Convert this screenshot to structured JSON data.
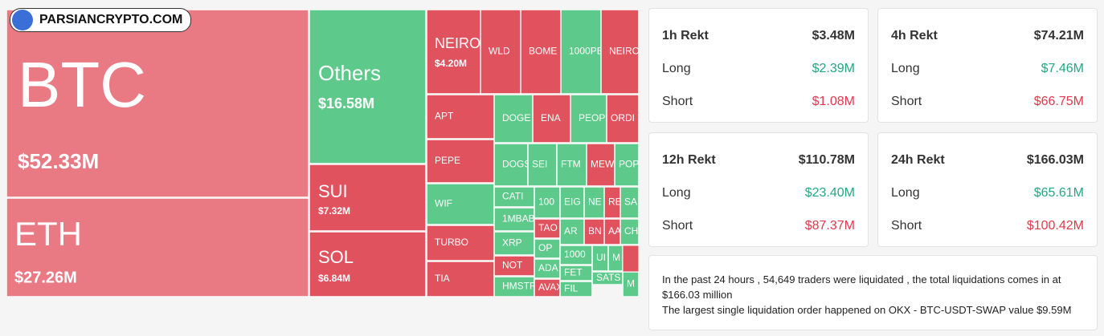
{
  "logo": "PARSIANCRYPTO.COM",
  "treemap": {
    "tiles": [
      {
        "label": "BTC",
        "value": "$52.33M"
      },
      {
        "label": "ETH",
        "value": "$27.26M"
      },
      {
        "label": "Others",
        "value": "$16.58M"
      },
      {
        "label": "SUI",
        "value": "$7.32M"
      },
      {
        "label": "SOL",
        "value": "$6.84M"
      },
      {
        "label": "NEIRO",
        "value": "$4.20M"
      },
      {
        "label": "WLD"
      },
      {
        "label": "BOME"
      },
      {
        "label": "1000PE"
      },
      {
        "label": "NEIRO"
      },
      {
        "label": "APT"
      },
      {
        "label": "PEPE"
      },
      {
        "label": "WIF"
      },
      {
        "label": "TURBO"
      },
      {
        "label": "TIA"
      },
      {
        "label": "DOGE"
      },
      {
        "label": "ENA"
      },
      {
        "label": "PEOPL"
      },
      {
        "label": "ORDI"
      },
      {
        "label": "DOGS"
      },
      {
        "label": "SEI"
      },
      {
        "label": "FTM"
      },
      {
        "label": "MEW"
      },
      {
        "label": "POP"
      },
      {
        "label": "CATI"
      },
      {
        "label": "1MBAB"
      },
      {
        "label": "XRP"
      },
      {
        "label": "NOT"
      },
      {
        "label": "HMSTR"
      },
      {
        "label": "100"
      },
      {
        "label": "EIG"
      },
      {
        "label": "NE"
      },
      {
        "label": "RE"
      },
      {
        "label": "SA"
      },
      {
        "label": "TAO"
      },
      {
        "label": "AR"
      },
      {
        "label": "BN"
      },
      {
        "label": "AA"
      },
      {
        "label": "CH"
      },
      {
        "label": "OP"
      },
      {
        "label": "ADA"
      },
      {
        "label": "AVAX"
      },
      {
        "label": "1000"
      },
      {
        "label": "FET"
      },
      {
        "label": "FIL"
      },
      {
        "label": "UI"
      },
      {
        "label": "M"
      },
      {
        "label": "SATS"
      },
      {
        "label": "M"
      }
    ]
  },
  "cards": [
    {
      "title": "1h Rekt",
      "total": "$3.48M",
      "long_label": "Long",
      "long": "$2.39M",
      "short_label": "Short",
      "short": "$1.08M"
    },
    {
      "title": "4h Rekt",
      "total": "$74.21M",
      "long_label": "Long",
      "long": "$7.46M",
      "short_label": "Short",
      "short": "$66.75M"
    },
    {
      "title": "12h Rekt",
      "total": "$110.78M",
      "long_label": "Long",
      "long": "$23.40M",
      "short_label": "Short",
      "short": "$87.37M"
    },
    {
      "title": "24h Rekt",
      "total": "$166.03M",
      "long_label": "Long",
      "long": "$65.61M",
      "short_label": "Short",
      "short": "$100.42M"
    }
  ],
  "note": {
    "lines": [
      "In the past 24 hours , 54,649 traders were liquidated , the total liquidations comes in at $166.03 million",
      "The largest single liquidation order happened on OKX - BTC-USDT-SWAP value $9.59M"
    ]
  }
}
